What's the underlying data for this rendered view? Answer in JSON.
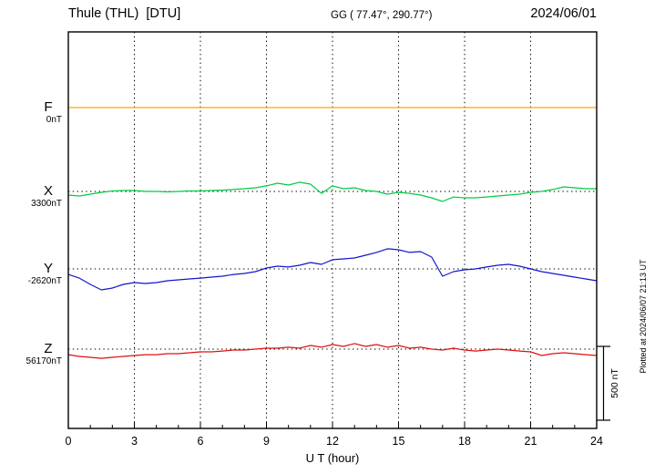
{
  "header": {
    "station_title": "Thule (THL)  [DTU]",
    "coordinates": "GG ( 77.47°, 290.77°)",
    "date": "2024/06/01"
  },
  "axes": {
    "x_title": "U T (hour)"
  },
  "scale_bar": {
    "label": "500 nT"
  },
  "footer": {
    "plotted_at": "Plotted at 2024/06/07 21:13 UT"
  },
  "chart_data": {
    "type": "line",
    "title": "Thule (THL) [DTU] magnetogram 2024/06/01",
    "xlabel": "U T (hour)",
    "xlim": [
      0,
      24
    ],
    "x_ticks": [
      0,
      3,
      6,
      9,
      12,
      15,
      18,
      21,
      24
    ],
    "grid": "dotted",
    "legend_position": "left",
    "sample_interval_hours": 0.5,
    "scale_bar_nT": 500,
    "series": [
      {
        "name": "F",
        "color": "#FFA400",
        "baseline_label": "0nT",
        "values_nT": [
          0,
          0,
          0,
          0,
          0,
          0,
          0,
          0,
          0,
          0,
          0,
          0,
          0,
          0,
          0,
          0,
          0,
          0,
          0,
          0,
          0,
          0,
          0,
          0,
          0,
          0,
          0,
          0,
          0,
          0,
          0,
          0,
          0,
          0,
          0,
          0,
          0,
          0,
          0,
          0,
          0,
          0,
          0,
          0,
          0,
          0,
          0,
          0,
          0
        ]
      },
      {
        "name": "X",
        "color": "#00CC44",
        "baseline_label": "3300nT",
        "values_nT": [
          -25,
          -31,
          -19,
          -6,
          3,
          6,
          6,
          0,
          0,
          -3,
          0,
          3,
          3,
          6,
          9,
          13,
          19,
          25,
          38,
          56,
          44,
          63,
          50,
          -13,
          38,
          19,
          25,
          6,
          0,
          -19,
          -6,
          -13,
          -25,
          -44,
          -69,
          -38,
          -44,
          -44,
          -38,
          -31,
          -25,
          -19,
          -6,
          0,
          13,
          31,
          25,
          19,
          19
        ]
      },
      {
        "name": "Y",
        "color": "#1515CD",
        "baseline_label": "-2620nT",
        "values_nT": [
          -38,
          -63,
          -106,
          -144,
          -131,
          -106,
          -94,
          -100,
          -94,
          -81,
          -75,
          -69,
          -63,
          -56,
          -50,
          -38,
          -31,
          -19,
          6,
          19,
          13,
          25,
          44,
          31,
          63,
          69,
          75,
          94,
          113,
          138,
          131,
          113,
          119,
          81,
          -50,
          -19,
          -6,
          0,
          13,
          25,
          31,
          19,
          0,
          -19,
          -31,
          -44,
          -56,
          -69,
          -81
        ]
      },
      {
        "name": "Z",
        "color": "#E01010",
        "baseline_label": "56170nT",
        "values_nT": [
          -38,
          -50,
          -56,
          -63,
          -56,
          -50,
          -44,
          -38,
          -38,
          -31,
          -31,
          -25,
          -19,
          -19,
          -13,
          -6,
          -6,
          0,
          6,
          6,
          13,
          6,
          25,
          13,
          31,
          19,
          38,
          19,
          31,
          13,
          25,
          6,
          13,
          0,
          -6,
          6,
          -6,
          -13,
          -6,
          0,
          -6,
          -13,
          -19,
          -44,
          -31,
          -25,
          -31,
          -38,
          -44
        ]
      }
    ]
  }
}
